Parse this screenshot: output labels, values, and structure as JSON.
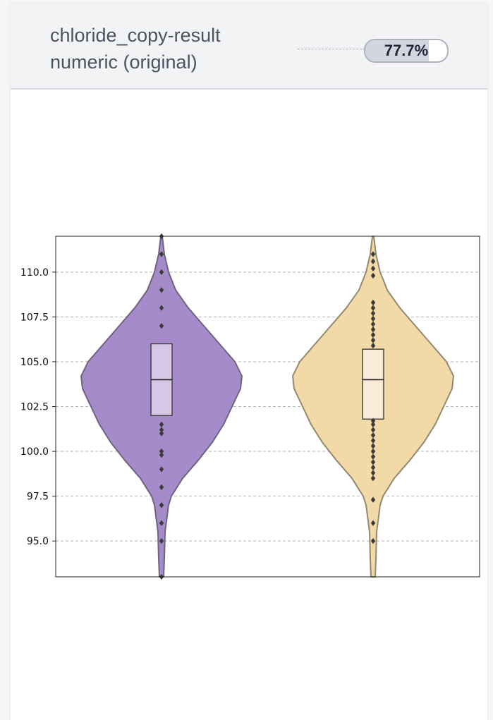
{
  "header": {
    "column_name": "chloride_copy-result",
    "column_type": "numeric (original)",
    "match_label": "77.7%",
    "match_fraction": 0.777
  },
  "colors": {
    "violin_left": "#a68bca",
    "violin_right": "#f2d9a8",
    "box_left": "#d8c7e6",
    "box_right": "#f9ebd5"
  },
  "chart_data": {
    "type": "violin",
    "ylim": [
      93.0,
      112.0
    ],
    "yticks": [
      "95.0",
      "97.5",
      "100.0",
      "102.5",
      "105.0",
      "107.5",
      "110.0"
    ],
    "ytick_values": [
      95.0,
      97.5,
      100.0,
      102.5,
      105.0,
      107.5,
      110.0
    ],
    "grid": true,
    "series": [
      {
        "min": 93.0,
        "max": 112.0,
        "q1": 102.0,
        "median": 104.0,
        "q3": 106.0,
        "outliers": [
          93.0,
          95.0,
          96.0,
          97.0,
          98.0,
          99.0,
          99.8,
          100.0,
          101.0,
          101.2,
          101.5,
          107.0,
          108.0,
          109.0,
          110.0,
          111.0,
          112.0
        ]
      },
      {
        "min": 93.0,
        "max": 112.0,
        "q1": 101.8,
        "median": 104.0,
        "q3": 105.7,
        "outliers": [
          95.0,
          96.0,
          97.3,
          98.5,
          98.8,
          99.1,
          99.4,
          99.7,
          100.0,
          100.3,
          100.6,
          100.9,
          101.2,
          101.5,
          101.7,
          105.9,
          106.2,
          106.5,
          106.8,
          107.1,
          107.4,
          107.7,
          108.0,
          108.3,
          109.8,
          110.2,
          110.6,
          111.0
        ]
      }
    ]
  }
}
